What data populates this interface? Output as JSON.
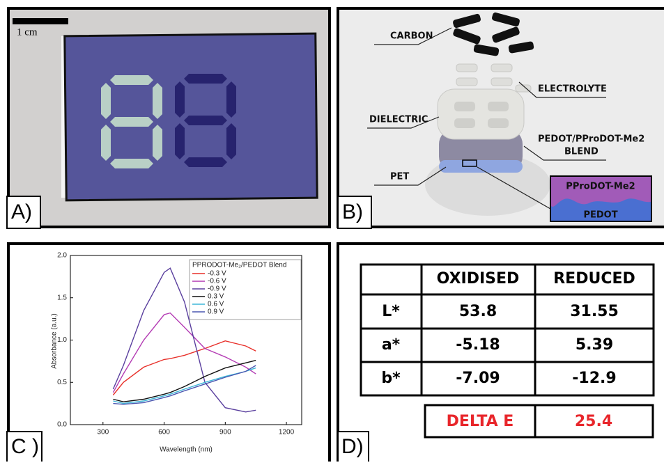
{
  "panel_a": {
    "label": "A)",
    "scale_bar": "1 cm"
  },
  "panel_b": {
    "label": "B)",
    "carbon": "CARBON",
    "electrolyte": "ELECTROLYTE",
    "dielectric": "DIELECTRIC",
    "blend": [
      "PEDOT/PProDOT-Me2",
      "BLEND"
    ],
    "pet": "PET",
    "inset_top": "PProDOT-Me2",
    "inset_bottom": "PEDOT"
  },
  "panel_c": {
    "label": "C )"
  },
  "chart_data": {
    "type": "line",
    "xlabel": "Wavelength (nm)",
    "ylabel": "Absorbance (a.u.)",
    "legend_title": "PPRODOT-Me₂/PEDOT Blend",
    "legend": "upper right",
    "grid": false,
    "x": [
      350,
      400,
      500,
      600,
      630,
      700,
      800,
      900,
      1000,
      1050
    ],
    "xlim": [
      140,
      1275
    ],
    "xticks": [
      300,
      600,
      900,
      1200
    ],
    "ylim": [
      0,
      2
    ],
    "yticks": [
      {
        "value": 0,
        "label": "0.0"
      },
      {
        "value": 0.5,
        "label": "0.5"
      },
      {
        "value": 1,
        "label": "1.0"
      },
      {
        "value": 1.5,
        "label": "1.5"
      },
      {
        "value": 2,
        "label": "2.0"
      }
    ],
    "series": [
      {
        "name": "-0.3 V",
        "color": "#e8302a",
        "values": [
          0.35,
          0.5,
          0.68,
          0.77,
          0.78,
          0.82,
          0.9,
          0.99,
          0.93,
          0.87
        ]
      },
      {
        "name": "-0.6 V",
        "color": "#b43cb4",
        "values": [
          0.38,
          0.6,
          1.0,
          1.3,
          1.32,
          1.15,
          0.9,
          0.8,
          0.68,
          0.6
        ]
      },
      {
        "name": "-0.9 V",
        "color": "#5a3f9e",
        "values": [
          0.42,
          0.7,
          1.35,
          1.8,
          1.85,
          1.45,
          0.5,
          0.2,
          0.15,
          0.17
        ]
      },
      {
        "name": "0.3 V",
        "color": "#111111",
        "values": [
          0.3,
          0.27,
          0.3,
          0.36,
          0.38,
          0.45,
          0.57,
          0.67,
          0.73,
          0.76
        ]
      },
      {
        "name": "0.6 V",
        "color": "#3fb7d8",
        "values": [
          0.28,
          0.25,
          0.28,
          0.34,
          0.36,
          0.42,
          0.5,
          0.57,
          0.63,
          0.67
        ]
      },
      {
        "name": "0.9 V",
        "color": "#4a56b0",
        "values": [
          0.25,
          0.24,
          0.26,
          0.32,
          0.34,
          0.4,
          0.48,
          0.56,
          0.63,
          0.7
        ]
      }
    ]
  },
  "panel_d": {
    "label": "D)",
    "table": {
      "header": [
        "OXIDISED",
        "REDUCED"
      ],
      "rows": [
        [
          "L*",
          "53.8",
          "31.55"
        ],
        [
          "a*",
          "-5.18",
          "5.39"
        ],
        [
          "b*",
          "-7.09",
          "-12.9"
        ]
      ]
    },
    "delta": {
      "label": "DELTA E",
      "value": "25.4"
    }
  }
}
